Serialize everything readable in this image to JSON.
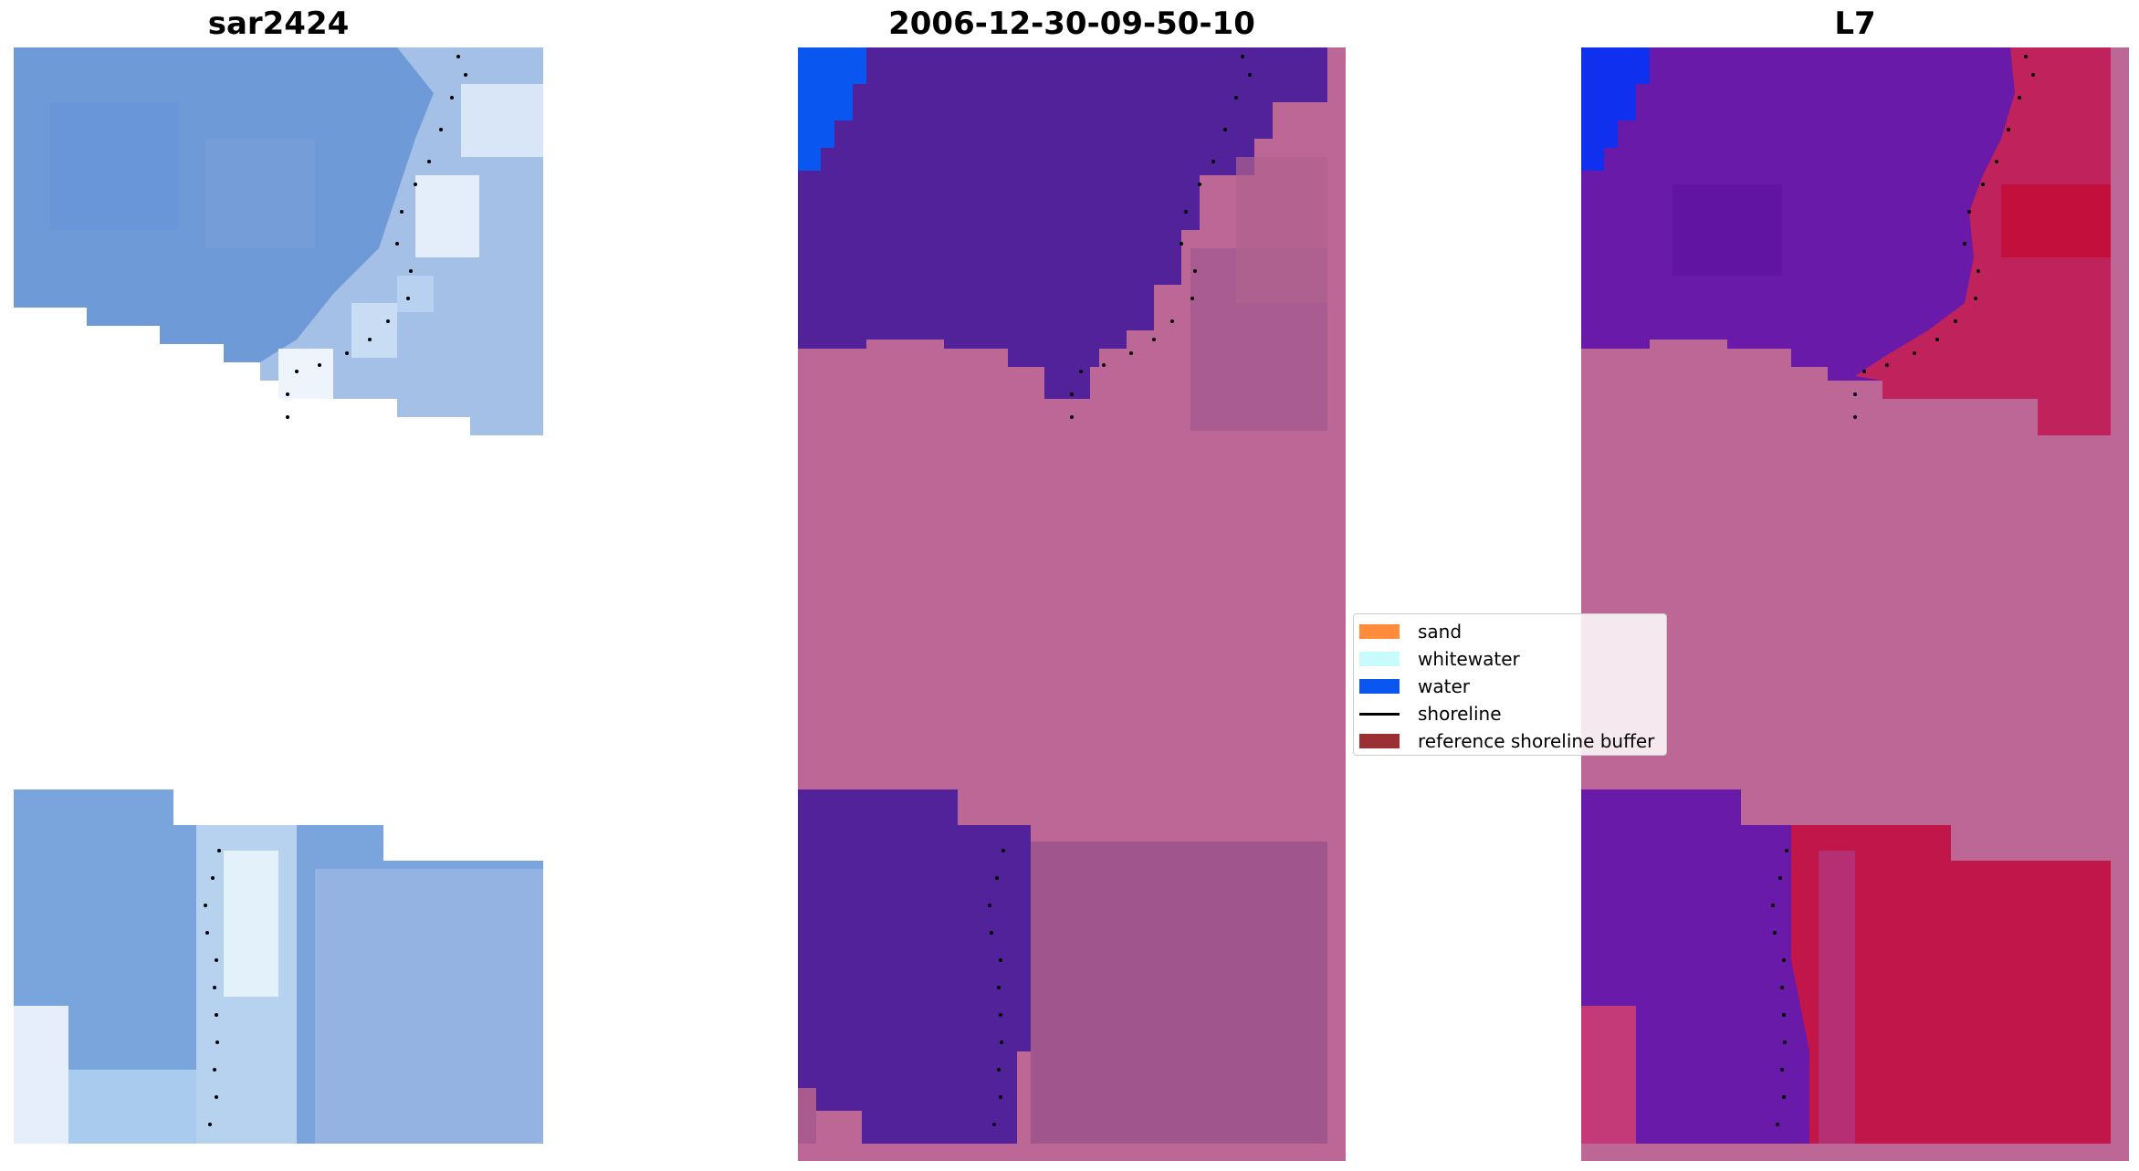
{
  "panels": [
    {
      "id": "rgb",
      "title": "sar2424"
    },
    {
      "id": "classified",
      "title": "2006-12-30-09-50-10"
    },
    {
      "id": "index",
      "title": "L7"
    }
  ],
  "legend": {
    "items": [
      {
        "label": "sand",
        "kind": "patch",
        "color": "#ff8c3a"
      },
      {
        "label": "whitewater",
        "kind": "patch",
        "color": "#c8fcfc"
      },
      {
        "label": "water",
        "kind": "patch",
        "color": "#0a56f0"
      },
      {
        "label": "shoreline",
        "kind": "line",
        "color": "#000000"
      },
      {
        "label": "reference shoreline buffer",
        "kind": "patch",
        "color": "#9b2f33"
      }
    ]
  },
  "colors": {
    "buffer_overlay": "#bd6796",
    "water_class": "#52229a",
    "sea_rgb": "#6f9ad8",
    "whitewater_rgb": "#e8f2fb",
    "land_index": "#c20f3c",
    "water_index": "#6a1aa8"
  }
}
